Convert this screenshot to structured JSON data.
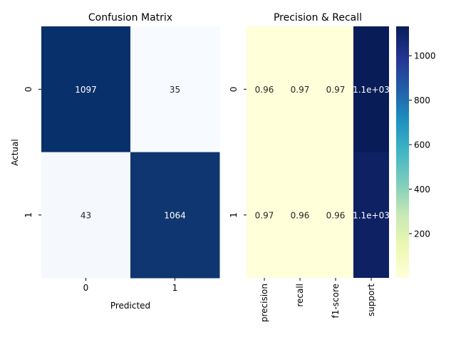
{
  "chart_data": [
    {
      "type": "heatmap",
      "title": "Confusion Matrix",
      "xlabel": "Predicted",
      "ylabel": "Actual",
      "x_categories": [
        "0",
        "1"
      ],
      "y_categories": [
        "0",
        "1"
      ],
      "values": [
        [
          1097,
          35
        ],
        [
          43,
          1064
        ]
      ],
      "annotations": [
        [
          "1097",
          "35"
        ],
        [
          "43",
          "1064"
        ]
      ],
      "colormap": "Blues",
      "colorbar": false
    },
    {
      "type": "heatmap",
      "title": "Precision & Recall",
      "xlabel": "",
      "ylabel": "",
      "x_categories": [
        "precision",
        "recall",
        "f1-score",
        "support"
      ],
      "y_categories": [
        "0",
        "1"
      ],
      "values": [
        [
          0.96,
          0.97,
          0.97,
          1132
        ],
        [
          0.97,
          0.96,
          0.96,
          1107
        ]
      ],
      "annotations": [
        [
          "0.96",
          "0.97",
          "0.97",
          "1.1e+03"
        ],
        [
          "0.97",
          "0.96",
          "0.96",
          "1.1e+03"
        ]
      ],
      "colormap": "YlGnBu",
      "colorbar": true,
      "colorbar_ticks": [
        "200",
        "400",
        "600",
        "800",
        "1000"
      ],
      "colorbar_tick_values": [
        200,
        400,
        600,
        800,
        1000
      ],
      "colorbar_range": [
        0.96,
        1132
      ]
    }
  ],
  "colors": {
    "blues_low": "#f7fbff",
    "blues_high": "#08306b",
    "ylgnbu_stops": [
      "#ffffd9",
      "#edf8b1",
      "#c7e9b4",
      "#7fcdbb",
      "#41b6c4",
      "#1d91c0",
      "#225ea8",
      "#253494",
      "#081d58"
    ]
  }
}
